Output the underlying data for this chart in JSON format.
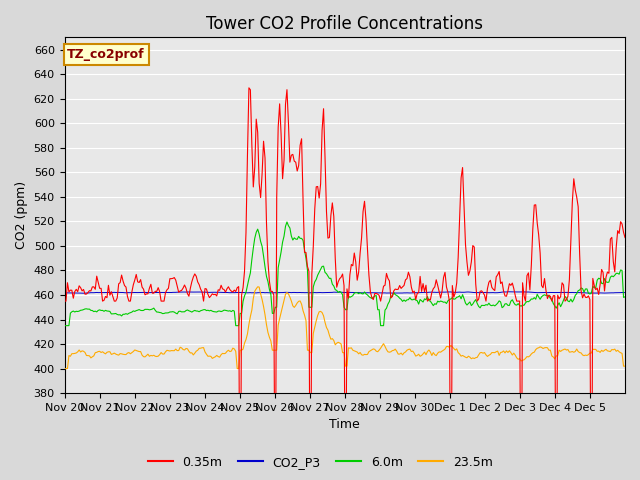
{
  "title": "Tower CO2 Profile Concentrations",
  "xlabel": "Time",
  "ylabel": "CO2 (ppm)",
  "ylim": [
    380,
    670
  ],
  "yticks": [
    380,
    400,
    420,
    440,
    460,
    480,
    500,
    520,
    540,
    560,
    580,
    600,
    620,
    640,
    660
  ],
  "xtick_labels": [
    "Nov 20",
    "Nov 21",
    "Nov 22",
    "Nov 23",
    "Nov 24",
    "Nov 25",
    "Nov 26",
    "Nov 27",
    "Nov 28",
    "Nov 29",
    "Nov 30",
    "Dec 1",
    "Dec 2",
    "Dec 3",
    "Dec 4",
    "Dec 5"
  ],
  "series_red_label": "0.35m",
  "series_blue_label": "CO2_P3",
  "series_green_label": "6.0m",
  "series_orange_label": "23.5m",
  "color_red": "#ff0000",
  "color_blue": "#0000cc",
  "color_green": "#00cc00",
  "color_orange": "#ffaa00",
  "annotation_text": "TZ_co2prof",
  "annotation_bg": "#ffffcc",
  "annotation_border": "#cc8800",
  "bg_color": "#d9d9d9",
  "plot_bg": "#e8e8e8",
  "grid_color": "#ffffff",
  "title_fontsize": 12,
  "axis_label_fontsize": 9,
  "tick_fontsize": 8,
  "legend_fontsize": 9
}
